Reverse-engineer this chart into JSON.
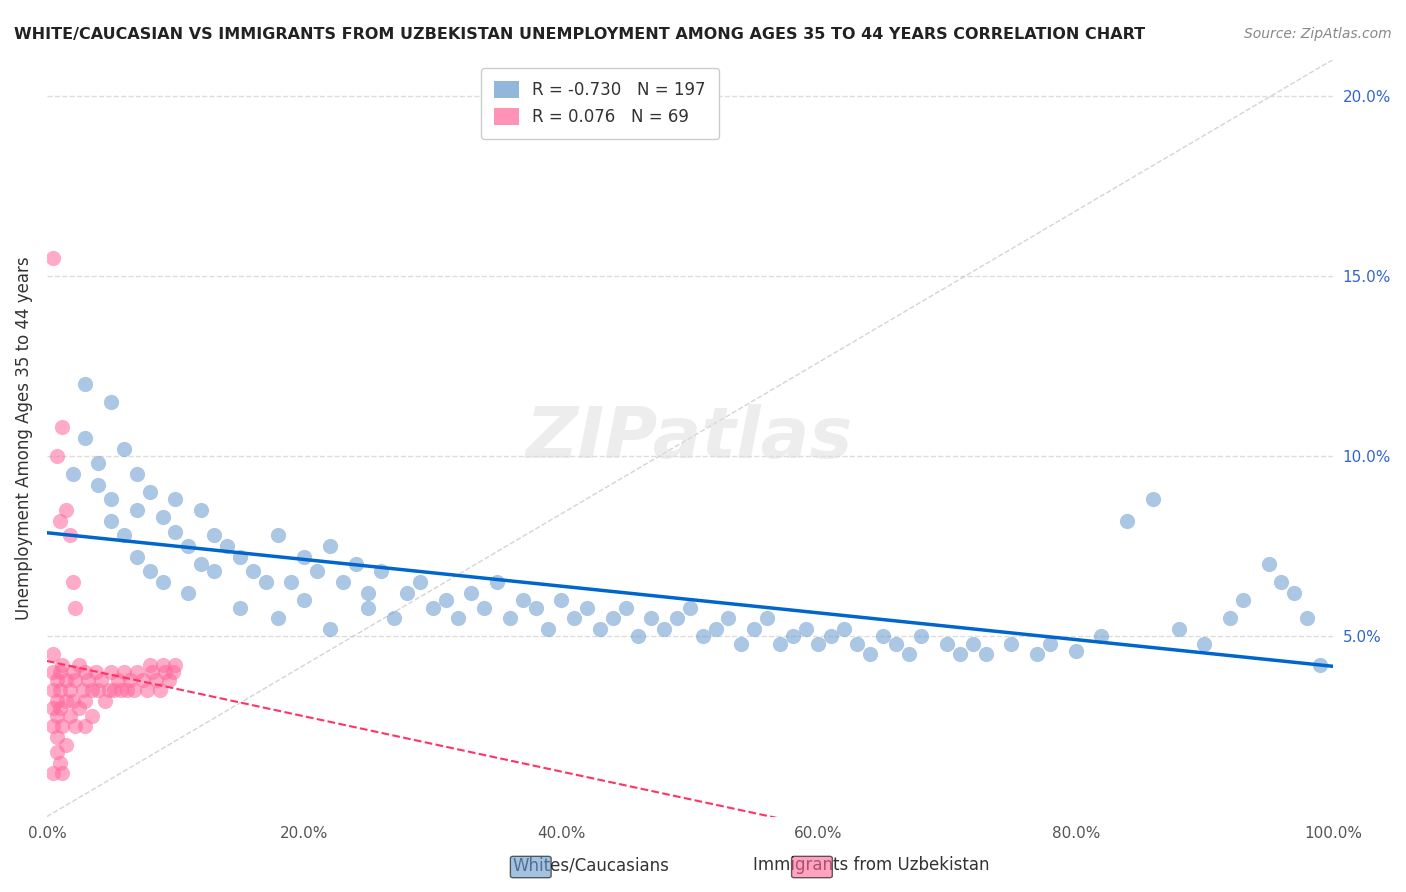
{
  "title": "WHITE/CAUCASIAN VS IMMIGRANTS FROM UZBEKISTAN UNEMPLOYMENT AMONG AGES 35 TO 44 YEARS CORRELATION CHART",
  "source": "Source: ZipAtlas.com",
  "ylabel": "Unemployment Among Ages 35 to 44 years",
  "xlabel": "",
  "xlim": [
    0,
    1.0
  ],
  "ylim": [
    0,
    0.21
  ],
  "xticks": [
    0.0,
    0.2,
    0.4,
    0.6,
    0.8,
    1.0
  ],
  "yticks": [
    0.05,
    0.1,
    0.15,
    0.2
  ],
  "xticklabels": [
    "0.0%",
    "20.0%",
    "40.0%",
    "60.0%",
    "80.0%",
    "100.0%"
  ],
  "yticklabels": [
    "5.0%",
    "10.0%",
    "15.0%",
    "20.0%"
  ],
  "legend_blue_label": "Whites/Caucasians",
  "legend_pink_label": "Immigrants from Uzbekistan",
  "legend_blue_R": "R = ",
  "legend_blue_R_val": "-0.730",
  "legend_blue_N": "N = ",
  "legend_blue_N_val": "197",
  "legend_pink_R_val": "0.076",
  "legend_pink_N_val": "69",
  "blue_color": "#6699CC",
  "pink_color": "#FF6699",
  "blue_line_color": "#0066CC",
  "pink_line_color": "#FF3366",
  "background_color": "#FFFFFF",
  "grid_color": "#DDDDDD",
  "watermark": "ZIPatlas",
  "blue_scatter_x": [
    0.02,
    0.03,
    0.03,
    0.04,
    0.04,
    0.05,
    0.05,
    0.05,
    0.06,
    0.06,
    0.07,
    0.07,
    0.07,
    0.08,
    0.08,
    0.09,
    0.09,
    0.1,
    0.1,
    0.11,
    0.11,
    0.12,
    0.12,
    0.13,
    0.13,
    0.14,
    0.15,
    0.15,
    0.16,
    0.17,
    0.18,
    0.18,
    0.19,
    0.2,
    0.2,
    0.21,
    0.22,
    0.22,
    0.23,
    0.24,
    0.25,
    0.25,
    0.26,
    0.27,
    0.28,
    0.29,
    0.3,
    0.31,
    0.32,
    0.33,
    0.34,
    0.35,
    0.36,
    0.37,
    0.38,
    0.39,
    0.4,
    0.41,
    0.42,
    0.43,
    0.44,
    0.45,
    0.46,
    0.47,
    0.48,
    0.49,
    0.5,
    0.51,
    0.52,
    0.53,
    0.54,
    0.55,
    0.56,
    0.57,
    0.58,
    0.59,
    0.6,
    0.61,
    0.62,
    0.63,
    0.64,
    0.65,
    0.66,
    0.67,
    0.68,
    0.7,
    0.71,
    0.72,
    0.73,
    0.75,
    0.77,
    0.78,
    0.8,
    0.82,
    0.84,
    0.86,
    0.88,
    0.9,
    0.92,
    0.93,
    0.95,
    0.96,
    0.97,
    0.98,
    0.99
  ],
  "blue_scatter_y": [
    0.095,
    0.12,
    0.105,
    0.098,
    0.092,
    0.115,
    0.088,
    0.082,
    0.102,
    0.078,
    0.095,
    0.072,
    0.085,
    0.09,
    0.068,
    0.083,
    0.065,
    0.079,
    0.088,
    0.075,
    0.062,
    0.085,
    0.07,
    0.068,
    0.078,
    0.075,
    0.072,
    0.058,
    0.068,
    0.065,
    0.078,
    0.055,
    0.065,
    0.072,
    0.06,
    0.068,
    0.075,
    0.052,
    0.065,
    0.07,
    0.062,
    0.058,
    0.068,
    0.055,
    0.062,
    0.065,
    0.058,
    0.06,
    0.055,
    0.062,
    0.058,
    0.065,
    0.055,
    0.06,
    0.058,
    0.052,
    0.06,
    0.055,
    0.058,
    0.052,
    0.055,
    0.058,
    0.05,
    0.055,
    0.052,
    0.055,
    0.058,
    0.05,
    0.052,
    0.055,
    0.048,
    0.052,
    0.055,
    0.048,
    0.05,
    0.052,
    0.048,
    0.05,
    0.052,
    0.048,
    0.045,
    0.05,
    0.048,
    0.045,
    0.05,
    0.048,
    0.045,
    0.048,
    0.045,
    0.048,
    0.045,
    0.048,
    0.046,
    0.05,
    0.082,
    0.088,
    0.052,
    0.048,
    0.055,
    0.06,
    0.07,
    0.065,
    0.062,
    0.055,
    0.042
  ],
  "pink_scatter_x": [
    0.005,
    0.005,
    0.005,
    0.005,
    0.005,
    0.008,
    0.008,
    0.008,
    0.008,
    0.01,
    0.01,
    0.01,
    0.012,
    0.012,
    0.015,
    0.015,
    0.018,
    0.018,
    0.02,
    0.02,
    0.022,
    0.022,
    0.025,
    0.025,
    0.028,
    0.03,
    0.03,
    0.03,
    0.032,
    0.035,
    0.035,
    0.038,
    0.04,
    0.042,
    0.045,
    0.048,
    0.05,
    0.052,
    0.055,
    0.058,
    0.06,
    0.062,
    0.065,
    0.068,
    0.07,
    0.075,
    0.078,
    0.08,
    0.082,
    0.085,
    0.088,
    0.09,
    0.092,
    0.095,
    0.098,
    0.1,
    0.005,
    0.008,
    0.01,
    0.012,
    0.015,
    0.018,
    0.02,
    0.022,
    0.005,
    0.008,
    0.01,
    0.012,
    0.015
  ],
  "pink_scatter_y": [
    0.04,
    0.035,
    0.03,
    0.025,
    0.045,
    0.038,
    0.032,
    0.028,
    0.022,
    0.04,
    0.035,
    0.03,
    0.042,
    0.025,
    0.038,
    0.032,
    0.035,
    0.028,
    0.04,
    0.032,
    0.038,
    0.025,
    0.042,
    0.03,
    0.035,
    0.04,
    0.032,
    0.025,
    0.038,
    0.035,
    0.028,
    0.04,
    0.035,
    0.038,
    0.032,
    0.035,
    0.04,
    0.035,
    0.038,
    0.035,
    0.04,
    0.035,
    0.038,
    0.035,
    0.04,
    0.038,
    0.035,
    0.042,
    0.04,
    0.038,
    0.035,
    0.042,
    0.04,
    0.038,
    0.04,
    0.042,
    0.155,
    0.1,
    0.082,
    0.108,
    0.085,
    0.078,
    0.065,
    0.058,
    0.012,
    0.018,
    0.015,
    0.012,
    0.02
  ]
}
